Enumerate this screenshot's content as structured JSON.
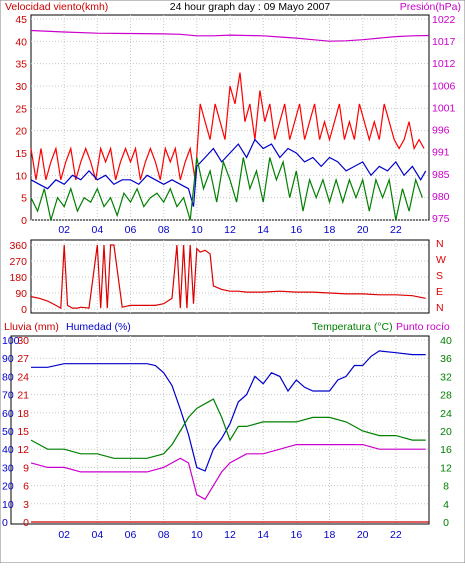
{
  "colors": {
    "wind_speed": "#ff0000",
    "wind_avg": "#0000cc",
    "wind_gust": "#008000",
    "pressure": "#cc00cc",
    "direction": "#dd0000",
    "rain": "#cc0000",
    "humidity": "#0000cc",
    "temperature": "#008000",
    "dewpoint": "#cc00cc",
    "axis_text": "#cc0000",
    "grid": "#c8c8c8"
  },
  "chart_data": [
    {
      "type": "line",
      "title": "24 hour graph day : 09 Mayo 2007",
      "left_label": "Velocidad viento(kmh)",
      "right_label": "Presión(hPa)",
      "x_ticks": [
        "02",
        "04",
        "06",
        "08",
        "10",
        "12",
        "14",
        "16",
        "18",
        "20",
        "22"
      ],
      "x_range": [
        0,
        24
      ],
      "y_left": {
        "range": [
          0,
          45
        ],
        "ticks": [
          "0",
          "5",
          "10",
          "15",
          "20",
          "25",
          "30",
          "35",
          "40",
          "45"
        ]
      },
      "y_right": {
        "range": [
          972.5,
          1025
        ],
        "ticks": [
          "975",
          "980",
          "985",
          "991",
          "996",
          "1001",
          "1006",
          "1012",
          "1017",
          "1022"
        ]
      },
      "series": [
        {
          "name": "gust",
          "axis": "left",
          "color_key": "wind_speed",
          "x": [
            0,
            0.3,
            0.6,
            0.9,
            1.2,
            1.5,
            1.8,
            2.1,
            2.4,
            2.7,
            3.0,
            3.3,
            3.6,
            3.9,
            4.2,
            4.5,
            4.8,
            5.1,
            5.4,
            5.7,
            6.0,
            6.3,
            6.6,
            6.9,
            7.2,
            7.5,
            7.8,
            8.1,
            8.4,
            8.7,
            9.0,
            9.3,
            9.6,
            9.9,
            10.2,
            10.5,
            10.8,
            11.1,
            11.4,
            11.7,
            12.0,
            12.3,
            12.6,
            12.9,
            13.2,
            13.5,
            13.8,
            14.1,
            14.4,
            14.7,
            15.0,
            15.3,
            15.6,
            15.9,
            16.2,
            16.5,
            16.8,
            17.1,
            17.4,
            17.7,
            18.0,
            18.3,
            18.6,
            18.9,
            19.2,
            19.5,
            19.8,
            20.1,
            20.4,
            20.7,
            21.0,
            21.3,
            21.6,
            21.9,
            22.2,
            22.5,
            22.8,
            23.1,
            23.4,
            23.7
          ],
          "values": [
            16,
            9,
            16,
            9,
            13,
            16,
            9,
            13,
            16,
            9,
            13,
            16,
            13,
            9,
            16,
            13,
            16,
            9,
            13,
            16,
            13,
            16,
            9,
            13,
            16,
            13,
            9,
            16,
            13,
            16,
            9,
            13,
            16,
            9,
            26,
            22,
            18,
            26,
            22,
            18,
            30,
            26,
            33,
            22,
            26,
            18,
            29,
            22,
            26,
            18,
            22,
            26,
            18,
            22,
            26,
            18,
            22,
            26,
            18,
            22,
            18,
            22,
            26,
            18,
            22,
            18,
            26,
            22,
            18,
            22,
            18,
            26,
            22,
            18,
            16,
            18,
            22,
            16,
            18,
            16
          ]
        },
        {
          "name": "average",
          "axis": "left",
          "color_key": "wind_avg",
          "x": [
            0,
            0.5,
            1.0,
            1.5,
            2.0,
            2.5,
            3.0,
            3.5,
            4.0,
            4.5,
            5.0,
            5.5,
            6.0,
            6.5,
            7.0,
            7.5,
            8.0,
            8.5,
            9.0,
            9.5,
            9.8,
            10.0,
            10.5,
            11.0,
            11.5,
            12.0,
            12.5,
            13.0,
            13.5,
            14.0,
            14.5,
            15.0,
            15.5,
            16.0,
            16.5,
            17.0,
            17.5,
            18.0,
            18.5,
            19.0,
            19.5,
            20.0,
            20.5,
            21.0,
            21.5,
            22.0,
            22.5,
            23.0,
            23.5,
            23.8
          ],
          "values": [
            9,
            8,
            7,
            9,
            8,
            10,
            9,
            11,
            9,
            10,
            8,
            9,
            9,
            8,
            10,
            9,
            8,
            9,
            8,
            7,
            3,
            12,
            14,
            16,
            13,
            15,
            17,
            14,
            18,
            16,
            17,
            14,
            16,
            15,
            13,
            14,
            12,
            14,
            13,
            11,
            12,
            13,
            10,
            12,
            11,
            13,
            10,
            12,
            9,
            11
          ]
        },
        {
          "name": "speed",
          "axis": "left",
          "color_key": "wind_gust",
          "x": [
            0,
            0.4,
            0.8,
            1.2,
            1.6,
            2.0,
            2.4,
            2.8,
            3.2,
            3.6,
            4.0,
            4.4,
            4.8,
            5.2,
            5.6,
            6.0,
            6.4,
            6.8,
            7.2,
            7.6,
            8.0,
            8.4,
            8.8,
            9.2,
            9.6,
            10.0,
            10.4,
            10.8,
            11.2,
            11.6,
            12.0,
            12.4,
            12.8,
            13.2,
            13.6,
            14.0,
            14.4,
            14.8,
            15.2,
            15.6,
            16.0,
            16.4,
            16.8,
            17.2,
            17.6,
            18.0,
            18.4,
            18.8,
            19.2,
            19.6,
            20.0,
            20.4,
            20.8,
            21.2,
            21.6,
            22.0,
            22.4,
            22.8,
            23.2,
            23.6
          ],
          "values": [
            5,
            2,
            7,
            0,
            5,
            3,
            7,
            2,
            5,
            4,
            7,
            3,
            5,
            1,
            6,
            4,
            7,
            3,
            5,
            6,
            4,
            7,
            3,
            5,
            0,
            14,
            7,
            11,
            4,
            13,
            9,
            4,
            14,
            7,
            11,
            4,
            14,
            9,
            13,
            5,
            11,
            2,
            9,
            5,
            9,
            4,
            9,
            4,
            9,
            5,
            9,
            2,
            9,
            5,
            9,
            0,
            7,
            2,
            9,
            5
          ]
        },
        {
          "name": "pressure",
          "axis": "right",
          "color_key": "pressure",
          "x": [
            0,
            2,
            4,
            6,
            8,
            9,
            10,
            11,
            12,
            13,
            14,
            15,
            16,
            17,
            18,
            19,
            20,
            21,
            22,
            23,
            24
          ],
          "values": [
            1022,
            1021.6,
            1021.3,
            1021.2,
            1021.1,
            1021,
            1020.6,
            1020.6,
            1020.8,
            1020.7,
            1020.6,
            1020.3,
            1020,
            1019.6,
            1019.2,
            1019.3,
            1019.6,
            1020,
            1020.4,
            1020.6,
            1020.7
          ]
        }
      ]
    },
    {
      "type": "line",
      "right_letters": [
        "N",
        "W",
        "S",
        "E",
        "N"
      ],
      "x_ticks": [],
      "x_range": [
        0,
        24
      ],
      "y_left": {
        "range": [
          0,
          360
        ],
        "ticks": [
          "0",
          "90",
          "180",
          "270",
          "360"
        ]
      },
      "series": [
        {
          "name": "direction",
          "axis": "left",
          "color_key": "direction",
          "x": [
            0,
            0.5,
            1.0,
            1.5,
            1.8,
            2.0,
            2.2,
            2.5,
            2.8,
            3.0,
            3.5,
            4.0,
            4.2,
            4.4,
            4.6,
            4.8,
            5.0,
            5.5,
            6.0,
            6.5,
            7.0,
            7.5,
            8.0,
            8.5,
            8.8,
            9.0,
            9.2,
            9.4,
            9.6,
            9.8,
            10.0,
            10.2,
            10.5,
            10.8,
            11.0,
            11.5,
            12.0,
            12.5,
            13.0,
            14.0,
            15.0,
            16.0,
            17.0,
            18.0,
            19.0,
            20.0,
            21.0,
            22.0,
            23.0,
            23.8
          ],
          "values": [
            70,
            60,
            45,
            20,
            5,
            360,
            20,
            5,
            5,
            10,
            5,
            360,
            5,
            360,
            5,
            360,
            360,
            10,
            20,
            20,
            20,
            20,
            30,
            60,
            360,
            5,
            360,
            5,
            360,
            30,
            340,
            320,
            330,
            310,
            130,
            110,
            100,
            100,
            95,
            95,
            100,
            95,
            95,
            90,
            85,
            85,
            80,
            80,
            75,
            60
          ]
        }
      ]
    },
    {
      "type": "line",
      "left_label_1": "Lluvia (mm)",
      "left_label_2": "Humedad (%)",
      "right_label_1": "Temperatura (°C)",
      "right_label_2": "Punto rocío",
      "x_ticks": [
        "02",
        "04",
        "06",
        "08",
        "10",
        "12",
        "14",
        "16",
        "18",
        "20",
        "22"
      ],
      "x_range": [
        0,
        24
      ],
      "rain_ticks": [
        "0",
        "3",
        "6",
        "9",
        "12",
        "15",
        "18",
        "21",
        "24",
        "27",
        "30"
      ],
      "humidity_ticks": [
        "0",
        "10",
        "20",
        "30",
        "40",
        "50",
        "60",
        "70",
        "80",
        "90",
        "100"
      ],
      "temp_ticks": [
        "0",
        "4",
        "8",
        "12",
        "16",
        "20",
        "24",
        "28",
        "32",
        "36",
        "40"
      ],
      "series": [
        {
          "name": "rain",
          "color_key": "rain",
          "range": [
            0,
            30
          ],
          "x": [
            0,
            24
          ],
          "values": [
            0,
            0
          ]
        },
        {
          "name": "humidity",
          "color_key": "humidity",
          "range": [
            0,
            100
          ],
          "x": [
            0,
            1,
            2,
            3,
            4,
            5,
            6,
            7,
            7.5,
            8,
            8.5,
            9,
            9.5,
            10,
            10.5,
            11,
            11.5,
            12,
            12.5,
            13,
            13.5,
            14,
            14.5,
            15,
            15.5,
            16,
            16.5,
            17,
            17.5,
            18,
            18.5,
            19,
            19.5,
            20,
            20.5,
            21,
            22,
            23,
            23.8
          ],
          "values": [
            85,
            85,
            87,
            87,
            87,
            87,
            87,
            87,
            86,
            82,
            75,
            62,
            48,
            30,
            28,
            40,
            46,
            54,
            66,
            70,
            80,
            76,
            82,
            80,
            72,
            78,
            74,
            72,
            72,
            72,
            78,
            80,
            86,
            86,
            91,
            94,
            93,
            92,
            92
          ]
        },
        {
          "name": "temperature",
          "color_key": "temperature",
          "range": [
            0,
            40
          ],
          "x": [
            0,
            1,
            2,
            3,
            4,
            5,
            6,
            7,
            8,
            8.5,
            9,
            9.5,
            10,
            10.5,
            11,
            11.5,
            12,
            12.5,
            13,
            14,
            15,
            16,
            17,
            18,
            19,
            19.5,
            20,
            21,
            22,
            23,
            23.8
          ],
          "values": [
            18,
            16,
            16,
            15,
            15,
            14,
            14,
            14,
            15,
            17,
            20,
            23,
            25,
            26,
            27,
            23,
            18,
            21,
            21,
            22,
            22,
            22,
            23,
            23,
            22,
            21,
            20,
            19,
            19,
            18,
            18
          ]
        },
        {
          "name": "dewpoint",
          "color_key": "dewpoint",
          "range": [
            0,
            40
          ],
          "x": [
            0,
            1,
            2,
            3,
            4,
            5,
            6,
            7,
            8,
            8.5,
            9,
            9.5,
            10,
            10.5,
            11,
            11.5,
            12,
            12.5,
            13,
            14,
            15,
            16,
            17,
            18,
            19,
            20,
            21,
            22,
            23,
            23.8
          ],
          "values": [
            13,
            12,
            12,
            11,
            11,
            11,
            11,
            11,
            12,
            13,
            14,
            13,
            6,
            5,
            8,
            11,
            13,
            14,
            15,
            15,
            16,
            17,
            17,
            17,
            17,
            17,
            16,
            16,
            16,
            16
          ]
        }
      ]
    }
  ]
}
